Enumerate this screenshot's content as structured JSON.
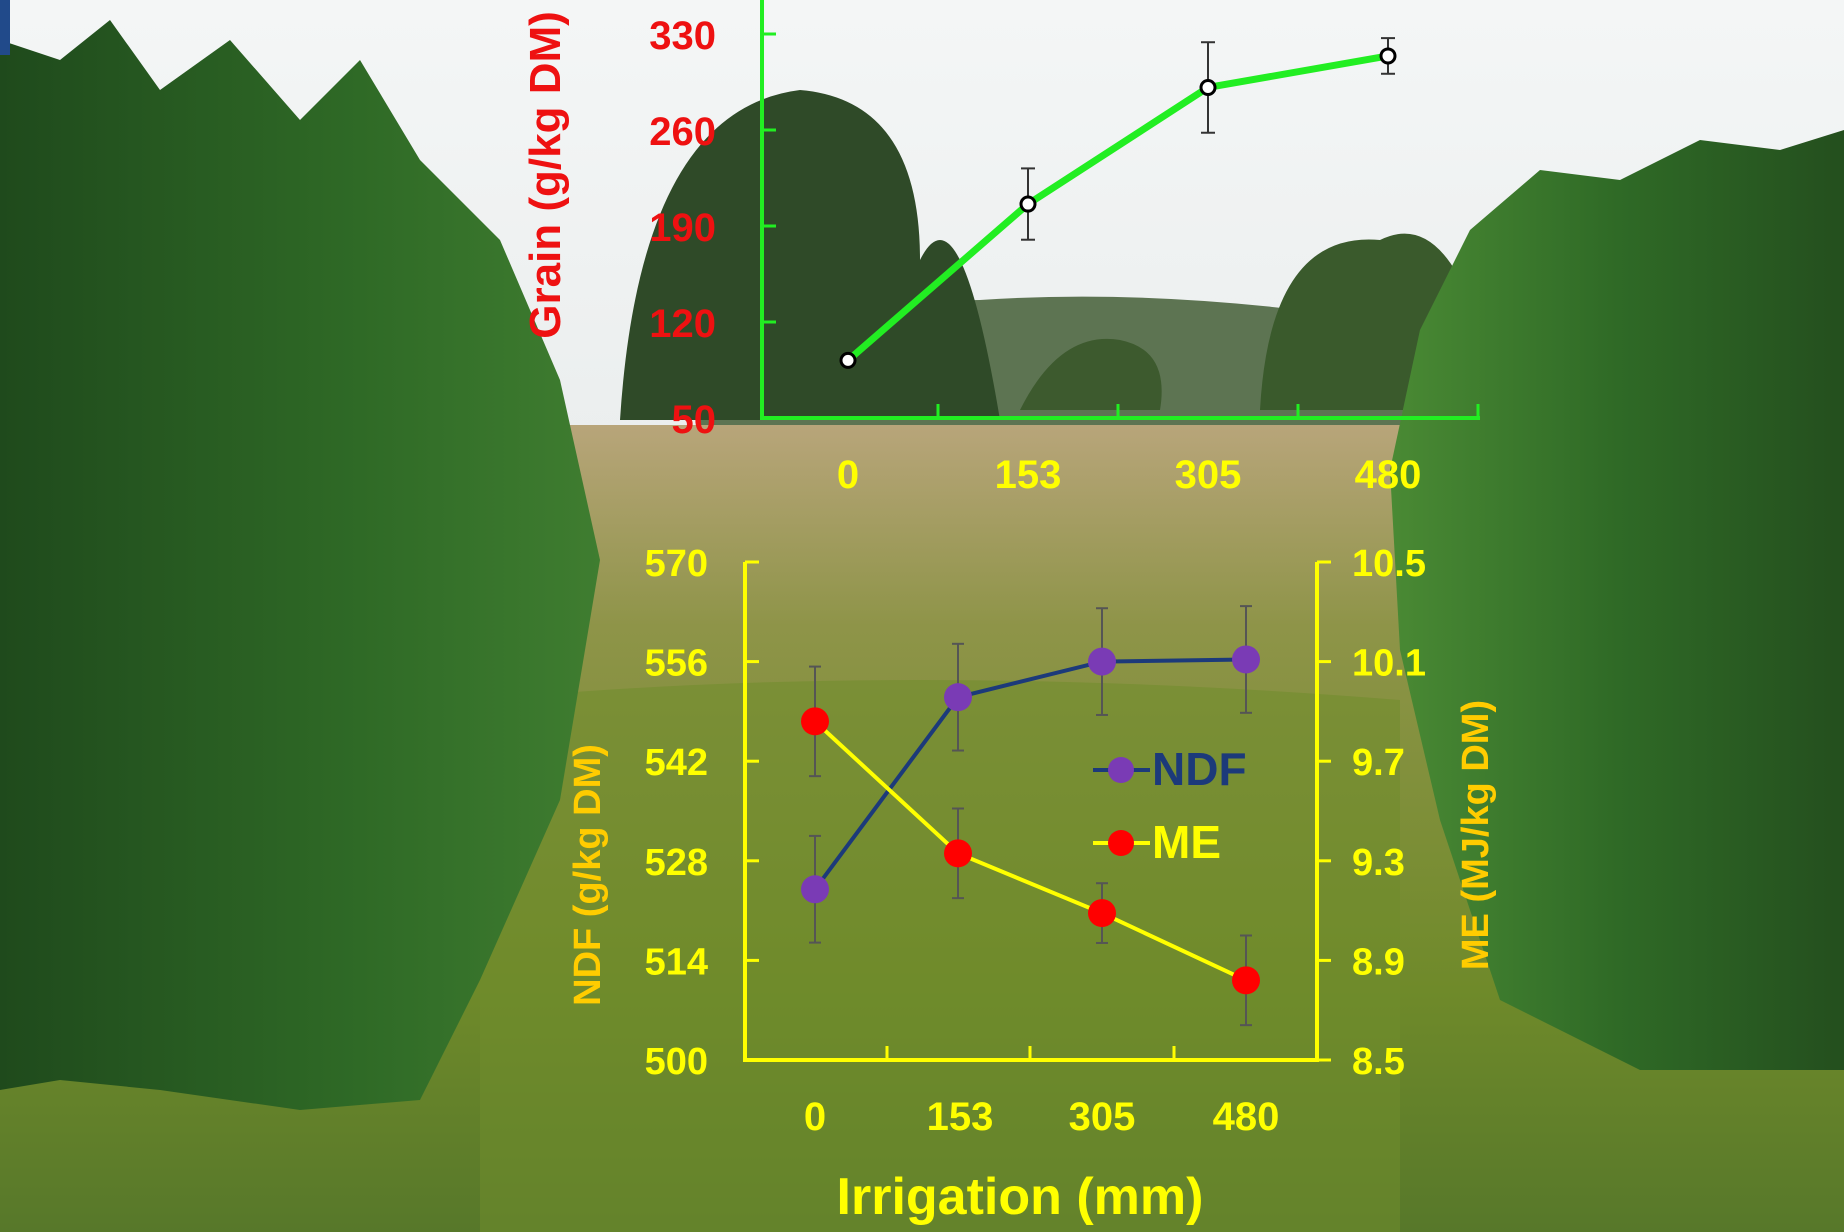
{
  "chart_data": [
    {
      "type": "line",
      "ylabel": "Grain (g/kg DM)",
      "x": [
        0,
        153,
        305,
        480
      ],
      "xticks": [
        "0",
        "153",
        "305",
        "480"
      ],
      "ylim": [
        50,
        330
      ],
      "yticks": [
        "50",
        "120",
        "190",
        "260",
        "330"
      ],
      "series": [
        {
          "values": [
            92,
            206,
            291,
            314
          ],
          "error": [
            0,
            26,
            33,
            13
          ]
        }
      ],
      "colors": {
        "axis": "#22ee22",
        "line": "#22ee22",
        "ylabel": "#ee1111",
        "yticks": "#ee1111",
        "xticks": "#ffff00"
      }
    },
    {
      "type": "line",
      "xlabel": "Irrigation (mm)",
      "ylabel": "NDF (g/kg DM)",
      "y2label": "ME (MJ/kg DM)",
      "x": [
        0,
        153,
        305,
        480
      ],
      "xticks": [
        "0",
        "153",
        "305",
        "480"
      ],
      "ylim": [
        500,
        570
      ],
      "yticks": [
        "500",
        "514",
        "528",
        "542",
        "556",
        "570"
      ],
      "y2lim": [
        8.5,
        10.5
      ],
      "y2ticks": [
        "8.5",
        "8.9",
        "9.3",
        "9.7",
        "10.1",
        "10.5"
      ],
      "legend_position": "center-right",
      "series": [
        {
          "name": "NDF",
          "axis": "left",
          "values": [
            524,
            551,
            556,
            556.3
          ],
          "error": [
            7.5,
            7.5,
            7.5,
            7.5
          ],
          "color": "#1c3a7a",
          "marker": "#7a3bb5"
        },
        {
          "name": "ME",
          "axis": "right",
          "values": [
            9.86,
            9.33,
            9.09,
            8.82
          ],
          "error": [
            0.22,
            0.18,
            0.12,
            0.18
          ],
          "color": "#ffff00",
          "marker": "#ff0000"
        }
      ],
      "colors": {
        "axis": "#ffff00",
        "ticks": "#ffff00",
        "ylabel": "#ffcc00",
        "y2label": "#ffcc00",
        "xlabel": "#ffff00"
      }
    }
  ]
}
